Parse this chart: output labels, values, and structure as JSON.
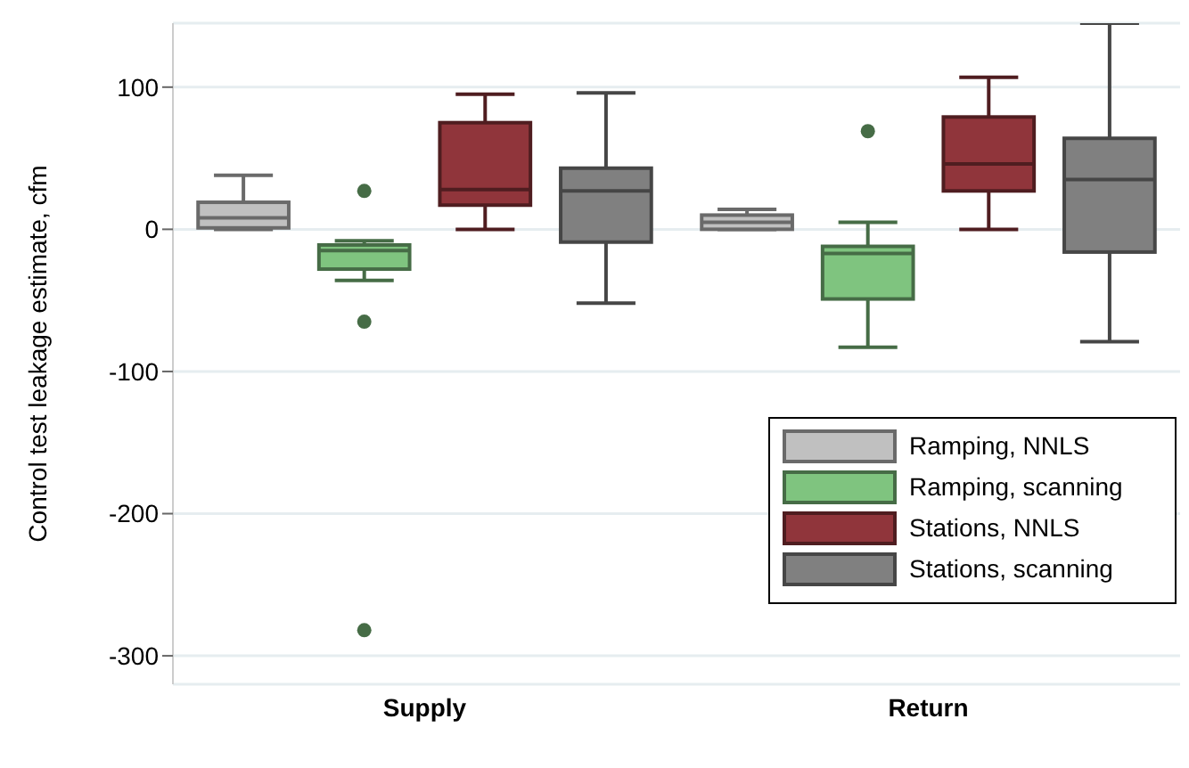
{
  "chart_data": {
    "type": "box",
    "ylabel": "Control test leakage estimate, cfm",
    "categories": [
      "Supply",
      "Return"
    ],
    "series": [
      {
        "name": "Ramping, NNLS",
        "color": "#c0c0c0",
        "boxes": [
          {
            "low": 0,
            "q1": 1,
            "median": 8,
            "q3": 19,
            "high": 38
          },
          {
            "low": 0,
            "q1": 0,
            "median": 5,
            "q3": 10,
            "high": 14
          }
        ]
      },
      {
        "name": "Ramping, scanning",
        "color": "#7fc47f",
        "boxes": [
          {
            "low": -36,
            "q1": -28,
            "median": -15,
            "q3": -11,
            "high": -8,
            "outliers": [
              27,
              -65,
              -282
            ]
          },
          {
            "low": -83,
            "q1": -49,
            "median": -17,
            "q3": -12,
            "high": 5,
            "outliers": [
              69
            ]
          }
        ]
      },
      {
        "name": "Stations, NNLS",
        "color": "#90353b",
        "boxes": [
          {
            "low": 0,
            "q1": 17,
            "median": 28,
            "q3": 75,
            "high": 95
          },
          {
            "low": 0,
            "q1": 27,
            "median": 46,
            "q3": 79,
            "high": 107
          }
        ]
      },
      {
        "name": "Stations, scanning",
        "color": "#808080",
        "boxes": [
          {
            "low": -52,
            "q1": -9,
            "median": 27,
            "q3": 43,
            "high": 96
          },
          {
            "low": -79,
            "q1": -16,
            "median": 35,
            "q3": 64,
            "high": 145
          }
        ]
      }
    ],
    "ylim": [
      -320,
      145
    ],
    "yticks": [
      100,
      0,
      -100,
      -200,
      -300
    ],
    "grid": "y",
    "legend": "bottom right"
  }
}
